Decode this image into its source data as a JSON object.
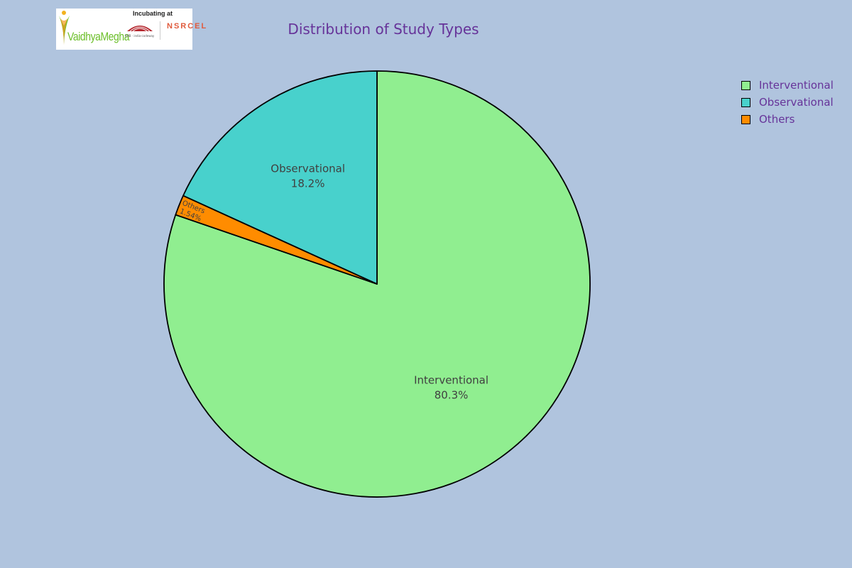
{
  "logo": {
    "brand_text": "VaidhyaMegha",
    "tagline": "Incubating at",
    "partner_text": "NSRCEL",
    "partner_subtext": "IIMB ·  india-codeway"
  },
  "colors": {
    "background": "#b0c4de",
    "title": "#663399",
    "label_text": "#404040",
    "edge": "#000000"
  },
  "chart_data": {
    "type": "pie",
    "title": "Distribution of Study Types",
    "start_angle_deg": 90,
    "direction": "clockwise",
    "legend_position": "top-right",
    "slices": [
      {
        "label": "Interventional",
        "value": 80.3,
        "display": "80.3%",
        "color": "#90ee90"
      },
      {
        "label": "Others",
        "value": 1.54,
        "display": "1.54%",
        "color": "#ff8c00"
      },
      {
        "label": "Observational",
        "value": 18.2,
        "display": "18.2%",
        "color": "#48d1cc"
      }
    ],
    "legend": [
      {
        "label": "Interventional",
        "color": "#90ee90"
      },
      {
        "label": "Observational",
        "color": "#48d1cc"
      },
      {
        "label": "Others",
        "color": "#ff8c00"
      }
    ]
  }
}
